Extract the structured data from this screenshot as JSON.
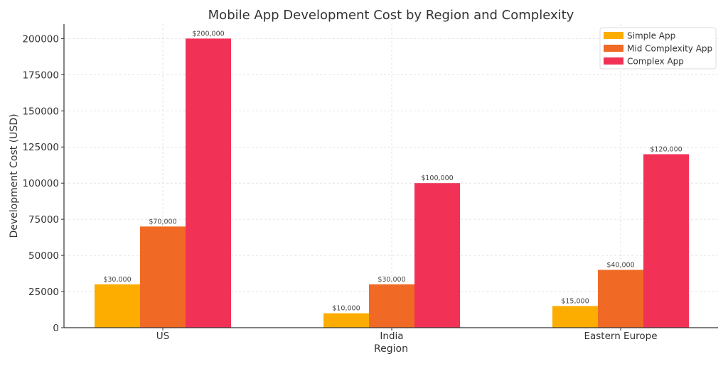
{
  "chart_data": {
    "type": "bar",
    "title": "Mobile App Development Cost by Region and Complexity",
    "xlabel": "Region",
    "ylabel": "Development Cost (USD)",
    "categories": [
      "US",
      "India",
      "Eastern Europe"
    ],
    "series": [
      {
        "name": "Simple App",
        "color": "#FCAD00",
        "values": [
          30000,
          10000,
          15000
        ],
        "labels": [
          "$30,000",
          "$10,000",
          "$15,000"
        ]
      },
      {
        "name": "Mid Complexity App",
        "color": "#F06A25",
        "values": [
          70000,
          30000,
          40000
        ],
        "labels": [
          "$70,000",
          "$30,000",
          "$40,000"
        ]
      },
      {
        "name": "Complex App",
        "color": "#F23157",
        "values": [
          200000,
          100000,
          120000
        ],
        "labels": [
          "$200,000",
          "$100,000",
          "$120,000"
        ]
      }
    ],
    "ylim": [
      0,
      210000
    ],
    "yticks": [
      "0",
      "25000",
      "50000",
      "75000",
      "100000",
      "125000",
      "150000",
      "175000",
      "200000"
    ],
    "grid": true,
    "legend": "top-right"
  }
}
